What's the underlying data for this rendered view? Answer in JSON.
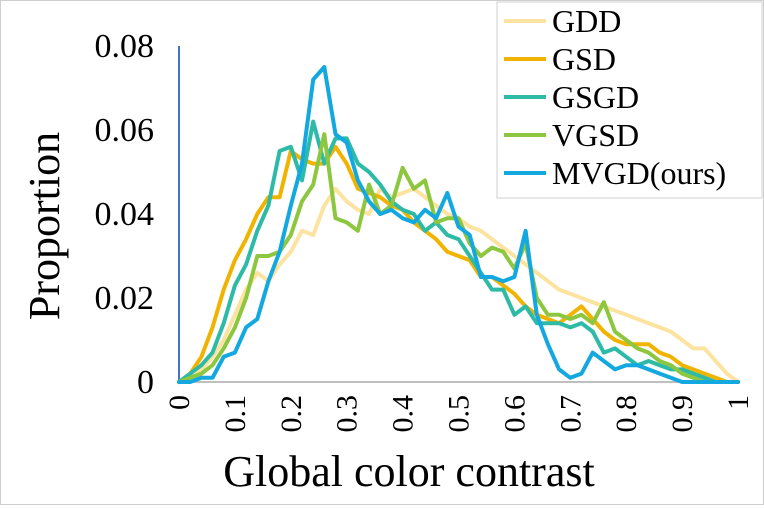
{
  "chart_data": {
    "type": "line",
    "title": "",
    "xlabel": "Global color contrast",
    "ylabel": "Proportion",
    "xlim": [
      0,
      1
    ],
    "ylim": [
      0,
      0.08
    ],
    "x_ticks": [
      0,
      0.1,
      0.2,
      0.3,
      0.4,
      0.5,
      0.6,
      0.7,
      0.8,
      0.9,
      1
    ],
    "x_tick_labels": [
      "0",
      "0.1",
      "0.2",
      "0.3",
      "0.4",
      "0.5",
      "0.6",
      "0.7",
      "0.8",
      "0.9",
      "1"
    ],
    "y_ticks": [
      0,
      0.02,
      0.04,
      0.06,
      0.08
    ],
    "y_tick_labels": [
      "0",
      "0.02",
      "0.04",
      "0.06",
      "0.08"
    ],
    "grid": false,
    "legend_position": "top-right",
    "x": [
      0,
      0.02,
      0.04,
      0.06,
      0.08,
      0.1,
      0.12,
      0.14,
      0.16,
      0.18,
      0.2,
      0.22,
      0.24,
      0.26,
      0.28,
      0.3,
      0.32,
      0.34,
      0.36,
      0.38,
      0.4,
      0.42,
      0.44,
      0.46,
      0.48,
      0.5,
      0.52,
      0.54,
      0.56,
      0.58,
      0.6,
      0.62,
      0.64,
      0.66,
      0.68,
      0.7,
      0.72,
      0.74,
      0.76,
      0.78,
      0.8,
      0.82,
      0.84,
      0.86,
      0.88,
      0.9,
      0.92,
      0.94,
      0.96,
      0.98,
      1
    ],
    "series": [
      {
        "name": "GDD",
        "color": "#fde3a0",
        "values": [
          0,
          0.001,
          0.003,
          0.006,
          0.01,
          0.016,
          0.022,
          0.026,
          0.024,
          0.028,
          0.031,
          0.036,
          0.035,
          0.042,
          0.046,
          0.043,
          0.041,
          0.04,
          0.046,
          0.044,
          0.045,
          0.046,
          0.044,
          0.042,
          0.04,
          0.039,
          0.037,
          0.036,
          0.034,
          0.032,
          0.03,
          0.028,
          0.026,
          0.024,
          0.022,
          0.021,
          0.02,
          0.019,
          0.018,
          0.017,
          0.016,
          0.015,
          0.014,
          0.013,
          0.012,
          0.01,
          0.008,
          0.008,
          0.005,
          0.002,
          0
        ]
      },
      {
        "name": "GSD",
        "color": "#f0b400",
        "values": [
          0,
          0.002,
          0.006,
          0.013,
          0.022,
          0.029,
          0.034,
          0.04,
          0.044,
          0.044,
          0.055,
          0.053,
          0.052,
          0.052,
          0.056,
          0.052,
          0.046,
          0.045,
          0.044,
          0.042,
          0.041,
          0.038,
          0.036,
          0.034,
          0.031,
          0.03,
          0.029,
          0.025,
          0.025,
          0.023,
          0.021,
          0.018,
          0.016,
          0.015,
          0.014,
          0.016,
          0.018,
          0.015,
          0.012,
          0.01,
          0.009,
          0.009,
          0.009,
          0.007,
          0.006,
          0.004,
          0.003,
          0.002,
          0.001,
          0,
          0
        ]
      },
      {
        "name": "GSGD",
        "color": "#2dbaa6",
        "values": [
          0,
          0.002,
          0.004,
          0.007,
          0.014,
          0.023,
          0.028,
          0.036,
          0.042,
          0.055,
          0.056,
          0.048,
          0.062,
          0.052,
          0.058,
          0.058,
          0.052,
          0.05,
          0.047,
          0.043,
          0.041,
          0.04,
          0.036,
          0.038,
          0.035,
          0.034,
          0.03,
          0.026,
          0.022,
          0.022,
          0.016,
          0.018,
          0.014,
          0.014,
          0.014,
          0.013,
          0.014,
          0.012,
          0.007,
          0.008,
          0.006,
          0.004,
          0.005,
          0.004,
          0.003,
          0.003,
          0.002,
          0.001,
          0,
          0,
          0
        ]
      },
      {
        "name": "VGSD",
        "color": "#8dc63f",
        "values": [
          0,
          0.001,
          0.002,
          0.004,
          0.008,
          0.013,
          0.02,
          0.03,
          0.03,
          0.031,
          0.035,
          0.043,
          0.047,
          0.059,
          0.039,
          0.038,
          0.036,
          0.047,
          0.04,
          0.042,
          0.051,
          0.046,
          0.048,
          0.038,
          0.039,
          0.039,
          0.033,
          0.03,
          0.032,
          0.031,
          0.027,
          0.033,
          0.02,
          0.016,
          0.016,
          0.015,
          0.016,
          0.014,
          0.019,
          0.012,
          0.01,
          0.008,
          0.007,
          0.005,
          0.004,
          0.002,
          0.001,
          0,
          0,
          0,
          0
        ]
      },
      {
        "name": "MVGD(ours)",
        "color": "#14a8e0",
        "values": [
          0,
          0,
          0.001,
          0.001,
          0.006,
          0.007,
          0.013,
          0.015,
          0.024,
          0.031,
          0.042,
          0.052,
          0.072,
          0.075,
          0.059,
          0.057,
          0.048,
          0.043,
          0.04,
          0.041,
          0.039,
          0.038,
          0.041,
          0.039,
          0.045,
          0.037,
          0.035,
          0.025,
          0.025,
          0.024,
          0.025,
          0.036,
          0.016,
          0.009,
          0.003,
          0.001,
          0.002,
          0.007,
          0.005,
          0.003,
          0.004,
          0.004,
          0.003,
          0.002,
          0.001,
          0,
          0,
          0,
          0,
          0,
          0
        ]
      }
    ]
  }
}
